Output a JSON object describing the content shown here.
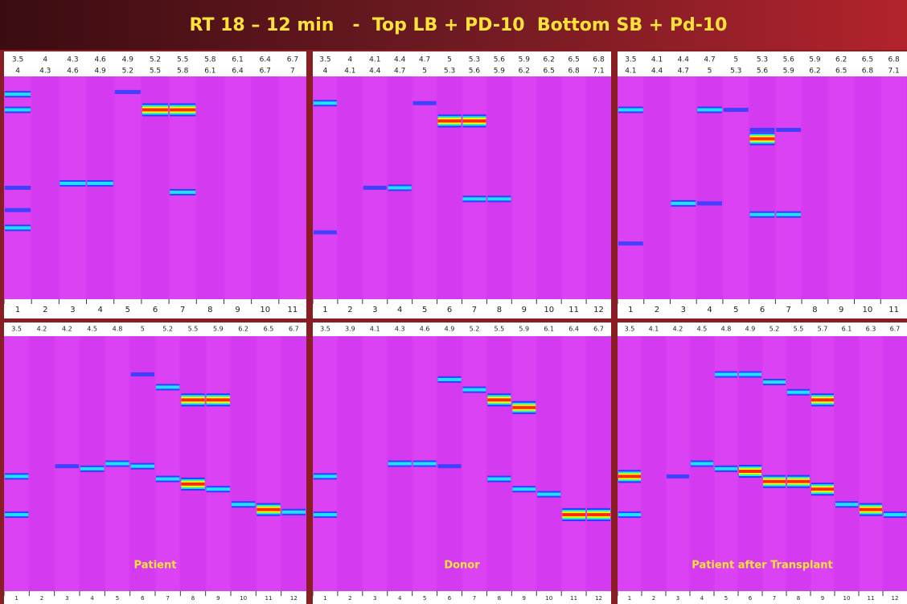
{
  "header": {
    "title": "RT 18 – 12 min   -  Top LB + PD-10  Bottom SB + Pd-10"
  },
  "top_panels": [
    {
      "upper_labels": [
        "3.5",
        "4",
        "4.3",
        "4.6",
        "4.9",
        "5.2",
        "5.5",
        "5.8",
        "6.1",
        "6.4",
        "6.7"
      ],
      "lower_labels": [
        "4",
        "4.3",
        "4.6",
        "4.9",
        "5.2",
        "5.5",
        "5.8",
        "6.1",
        "6.4",
        "6.7",
        "7"
      ],
      "lanes": [
        "1",
        "2",
        "3",
        "4",
        "5",
        "6",
        "7",
        "8",
        "9",
        "10",
        "11"
      ]
    },
    {
      "upper_labels": [
        "3.5",
        "4",
        "4.1",
        "4.4",
        "4.7",
        "5",
        "5.3",
        "5.6",
        "5.9",
        "6.2",
        "6.5",
        "6.8"
      ],
      "lower_labels": [
        "4",
        "4.1",
        "4.4",
        "4.7",
        "5",
        "5.3",
        "5.6",
        "5.9",
        "6.2",
        "6.5",
        "6.8",
        "7.1"
      ],
      "lanes": [
        "1",
        "2",
        "3",
        "4",
        "5",
        "6",
        "7",
        "8",
        "9",
        "10",
        "11",
        "12"
      ]
    },
    {
      "upper_labels": [
        "3.5",
        "4.1",
        "4.4",
        "4.7",
        "5",
        "5.3",
        "5.6",
        "5.9",
        "6.2",
        "6.5",
        "6.8"
      ],
      "lower_labels": [
        "4.1",
        "4.4",
        "4.7",
        "5",
        "5.3",
        "5.6",
        "5.9",
        "6.2",
        "6.5",
        "6.8",
        "7.1"
      ],
      "lanes": [
        "1",
        "2",
        "3",
        "4",
        "5",
        "6",
        "7",
        "8",
        "9",
        "10",
        "11"
      ]
    }
  ],
  "bottom_panels": [
    {
      "labels": [
        "3.5",
        "4.2",
        "4.2",
        "4.5",
        "4.8",
        "5",
        "5.2",
        "5.5",
        "5.9",
        "6.2",
        "6.5",
        "6.7"
      ],
      "lanes": [
        "1",
        "2",
        "3",
        "4",
        "5",
        "6",
        "7",
        "8",
        "9",
        "10",
        "11",
        "12"
      ],
      "caption": "Patient"
    },
    {
      "labels": [
        "3.5",
        "3.9",
        "4.1",
        "4.3",
        "4.6",
        "4.9",
        "5.2",
        "5.5",
        "5.9",
        "6.1",
        "6.4",
        "6.7"
      ],
      "lanes": [
        "1",
        "2",
        "3",
        "4",
        "5",
        "6",
        "7",
        "8",
        "9",
        "10",
        "11",
        "12"
      ],
      "caption": "Donor"
    },
    {
      "labels": [
        "3.5",
        "4.1",
        "4.2",
        "4.5",
        "4.8",
        "4.9",
        "5.2",
        "5.5",
        "5.7",
        "6.1",
        "6.3",
        "6.7"
      ],
      "lanes": [
        "1",
        "2",
        "3",
        "4",
        "5",
        "6",
        "7",
        "8",
        "9",
        "10",
        "11",
        "12"
      ],
      "caption": "Patient after Transplant"
    }
  ]
}
